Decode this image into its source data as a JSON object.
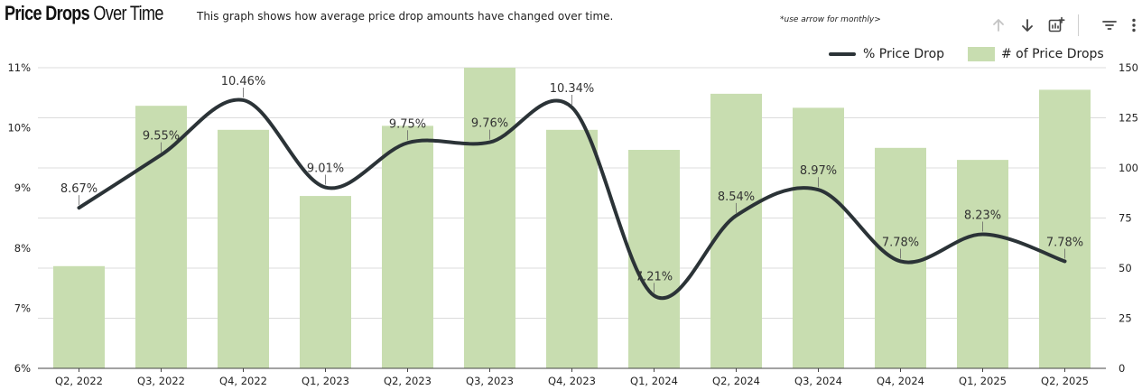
{
  "header": {
    "title_bold": "Price Drops",
    "title_rest": " Over Time",
    "subtitle": "This graph shows how average price drop amounts have changed over time.",
    "hint": "*use arrow for monthly>"
  },
  "toolbar": {
    "icons": [
      "arrow-up-icon",
      "arrow-down-icon",
      "chart-add-icon",
      "filter-icon",
      "more-vert-icon"
    ]
  },
  "colors": {
    "line": "#2b3337",
    "bar": "#c8ddb0",
    "grid": "#dcdcdc"
  },
  "chart_data": {
    "type": "bar",
    "categories": [
      "Q2, 2022",
      "Q3, 2022",
      "Q4, 2022",
      "Q1, 2023",
      "Q2, 2023",
      "Q3, 2023",
      "Q4, 2023",
      "Q1, 2024",
      "Q2, 2024",
      "Q3, 2024",
      "Q4, 2024",
      "Q1, 2025",
      "Q2, 2025"
    ],
    "series": [
      {
        "name": "# of Price Drops",
        "type": "bar",
        "axis": "right",
        "values": [
          51,
          131,
          119,
          86,
          121,
          150,
          119,
          109,
          137,
          130,
          110,
          104,
          139
        ]
      },
      {
        "name": "% Price Drop",
        "type": "line",
        "axis": "left",
        "values": [
          8.67,
          9.55,
          10.46,
          9.01,
          9.75,
          9.76,
          10.34,
          7.21,
          8.54,
          8.97,
          7.78,
          8.23,
          7.78
        ],
        "labels": [
          "8.67%",
          "9.55%",
          "10.46%",
          "9.01%",
          "9.75%",
          "9.76%",
          "10.34%",
          "7.21%",
          "8.54%",
          "8.97%",
          "7.78%",
          "8.23%",
          "7.78%"
        ]
      }
    ],
    "y_left": {
      "ylim": [
        6,
        11
      ],
      "ticks": [
        "6%",
        "7%",
        "8%",
        "9%",
        "10%",
        "11%"
      ]
    },
    "y_right": {
      "ylim": [
        0,
        150
      ],
      "ticks": [
        "0",
        "25",
        "50",
        "75",
        "100",
        "125",
        "150"
      ]
    },
    "grid": true,
    "legend_position": "top-right"
  }
}
